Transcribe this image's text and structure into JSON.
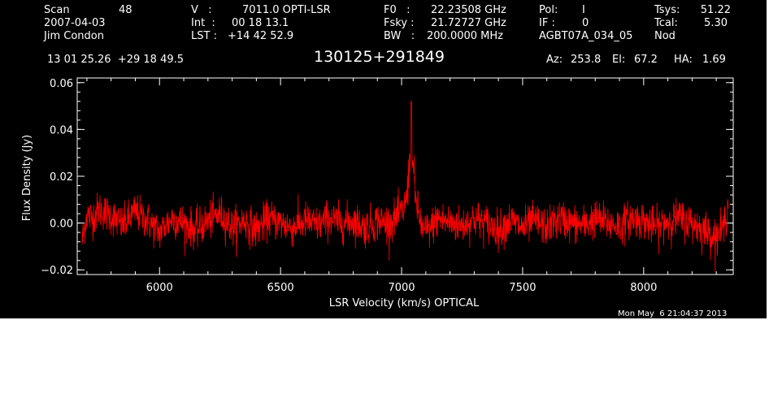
{
  "header": {
    "col1": {
      "line1_label": "Scan",
      "line1_value": "48",
      "line2": "2007-04-03",
      "line3": "Jim Condon"
    },
    "col2": {
      "line1_label": "V   :",
      "line1_value": "7011.0 OPTI-LSR",
      "line2_label": "Int  :",
      "line2_value": "00 18 13.1",
      "line3_label": "LST : ",
      "line3_value": "+14 42 52.9"
    },
    "col3": {
      "line1_label": "F0   :",
      "line1_value": "22.23508 GHz",
      "line2_label": "Fsky :",
      "line2_value": "21.72727 GHz",
      "line3_label": "BW   :",
      "line3_value": "200.0000 MHz"
    },
    "col4": {
      "line1_label": "Pol:",
      "line1_value": "I",
      "line2_label": "IF :",
      "line2_value": "0",
      "line3": "AGBT07A_034_05"
    },
    "col5": {
      "line1_label": "Tsys:",
      "line1_value": "51.22",
      "line2_label": "Tcal:",
      "line2_value": "5.30",
      "line3": "Nod"
    },
    "coords": "13 01 25.26  +29 18 49.5",
    "source": "130125+291849",
    "az_label": "Az:",
    "az_value": "253.8",
    "el_label": "El:",
    "el_value": "67.2",
    "ha_label": "HA:",
    "ha_value": "1.69"
  },
  "timestamp": "Mon May  6 21:04:37 2013",
  "colors": {
    "background": "#000000",
    "axes": "#ffffff",
    "series": "#ff0000",
    "page": "#ffffff"
  },
  "chart_data": {
    "type": "line",
    "title": "130125+291849",
    "xlabel": "LSR Velocity (km/s) OPTICAL",
    "ylabel": "Flux Density (Jy)",
    "xlim": [
      5660,
      8370
    ],
    "ylim": [
      -0.022,
      0.062
    ],
    "xticks": [
      6000,
      6500,
      7000,
      7500,
      8000
    ],
    "xtick_labels": [
      "6000",
      "6500",
      "7000",
      "7500",
      "8000"
    ],
    "yticks": [
      -0.02,
      0.0,
      0.02,
      0.04,
      0.06
    ],
    "ytick_labels": [
      "−0.02",
      "0.00",
      "0.02",
      "0.04",
      "0.06"
    ],
    "grid": false,
    "noise_rms_jy": 0.004,
    "series": [
      {
        "name": "",
        "color": "#ff0000",
        "x_start": 5680,
        "x_end": 8350,
        "baseline_jy": 0.0,
        "peak": {
          "x": 7040,
          "y": 0.052
        },
        "points": [
          [
            5680,
            -0.008
          ],
          [
            5700,
            0.004
          ],
          [
            5720,
            0.002
          ],
          [
            5750,
            0.006
          ],
          [
            5800,
            0.003
          ],
          [
            5850,
            -0.001
          ],
          [
            5900,
            0.005
          ],
          [
            5950,
            0.001
          ],
          [
            6000,
            -0.004
          ],
          [
            6050,
            0.002
          ],
          [
            6100,
            0.0
          ],
          [
            6150,
            -0.003
          ],
          [
            6200,
            0.001
          ],
          [
            6250,
            0.004
          ],
          [
            6300,
            -0.002
          ],
          [
            6350,
            0.001
          ],
          [
            6400,
            -0.003
          ],
          [
            6450,
            0.002
          ],
          [
            6500,
            0.0
          ],
          [
            6550,
            -0.002
          ],
          [
            6600,
            0.001
          ],
          [
            6650,
            -0.001
          ],
          [
            6700,
            0.002
          ],
          [
            6750,
            0.0
          ],
          [
            6800,
            0.001
          ],
          [
            6850,
            -0.002
          ],
          [
            6900,
            0.001
          ],
          [
            6950,
            0.0
          ],
          [
            6990,
            0.003
          ],
          [
            7010,
            0.006
          ],
          [
            7025,
            0.014
          ],
          [
            7035,
            0.03
          ],
          [
            7040,
            0.052
          ],
          [
            7045,
            0.028
          ],
          [
            7055,
            0.012
          ],
          [
            7070,
            0.004
          ],
          [
            7090,
            -0.004
          ],
          [
            7120,
            -0.002
          ],
          [
            7150,
            0.002
          ],
          [
            7200,
            0.0
          ],
          [
            7250,
            -0.001
          ],
          [
            7300,
            0.002
          ],
          [
            7350,
            0.0
          ],
          [
            7400,
            -0.003
          ],
          [
            7450,
            0.001
          ],
          [
            7500,
            -0.002
          ],
          [
            7550,
            0.001
          ],
          [
            7600,
            -0.002
          ],
          [
            7650,
            0.002
          ],
          [
            7700,
            0.0
          ],
          [
            7750,
            -0.001
          ],
          [
            7800,
            0.002
          ],
          [
            7850,
            0.0
          ],
          [
            7900,
            -0.001
          ],
          [
            7950,
            0.002
          ],
          [
            8000,
            0.001
          ],
          [
            8050,
            -0.002
          ],
          [
            8100,
            0.001
          ],
          [
            8150,
            0.002
          ],
          [
            8200,
            0.0
          ],
          [
            8250,
            -0.003
          ],
          [
            8300,
            -0.006
          ],
          [
            8330,
            -0.002
          ],
          [
            8350,
            0.008
          ]
        ]
      }
    ]
  }
}
